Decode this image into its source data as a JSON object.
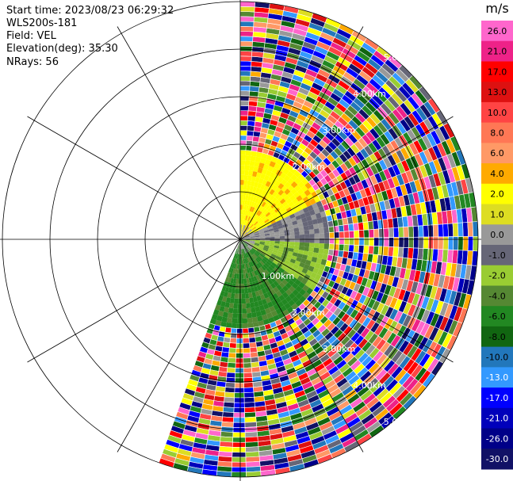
{
  "info": {
    "start_time": "Start time: 2023/08/23 06:29:32",
    "instrument": "WLS200s-181",
    "field": "Field: VEL",
    "elevation": "Elevation(deg): 35.30",
    "nrays": "NRays: 56"
  },
  "chart_data": {
    "type": "heatmap",
    "projection": "polar-ppi",
    "sector_deg": [
      0,
      200
    ],
    "range_rings_km": [
      1,
      2,
      3,
      4,
      5
    ],
    "ring_labels": [
      "1.00km",
      "2.00km",
      "3.00km",
      "4.00km",
      "5.00km"
    ],
    "grid": true,
    "colorbar": {
      "unit": "m/s",
      "ticks": [
        "26.0",
        "21.0",
        "17.0",
        "13.0",
        "10.0",
        "8.0",
        "6.0",
        "4.0",
        "2.0",
        "1.0",
        "0.0",
        "-1.0",
        "-2.0",
        "-4.0",
        "-6.0",
        "-8.0",
        "-10.0",
        "-13.0",
        "-17.0",
        "-21.0",
        "-26.0",
        "-30.0"
      ],
      "colors": [
        "#ff66cc",
        "#ee2288",
        "#ff0000",
        "#dd1111",
        "#ff4444",
        "#ff7755",
        "#ff9966",
        "#ffaa00",
        "#ffff00",
        "#dddd22",
        "#999999",
        "#666677",
        "#99cc33",
        "#558833",
        "#228822",
        "#116611",
        "#2277bb",
        "#3399ff",
        "#0000ff",
        "#0000bb",
        "#000088",
        "#111166"
      ]
    }
  }
}
